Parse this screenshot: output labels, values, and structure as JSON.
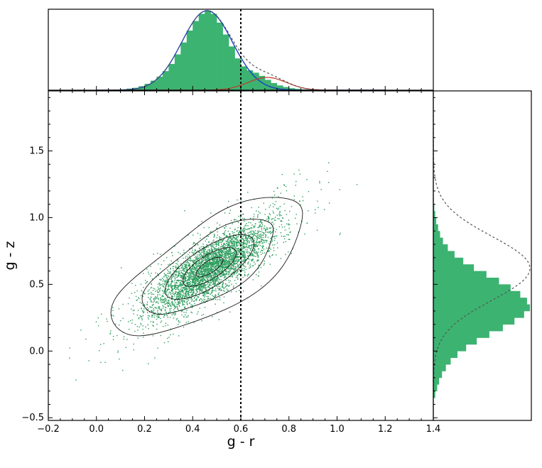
{
  "chart_data": {
    "type": "scatter",
    "xlabel": "g - r",
    "ylabel": "g - z",
    "xlim": [
      -0.2,
      1.4
    ],
    "ylim": [
      -0.52,
      1.95
    ],
    "x_ticks": [
      "−0.2",
      "0.0",
      "0.2",
      "0.4",
      "0.6",
      "0.8",
      "1.0",
      "1.2",
      "1.4"
    ],
    "y_ticks": [
      "−0.5",
      "0.0",
      "0.5",
      "1.0",
      "1.5"
    ],
    "vline_x": 0.6,
    "scatter_color": "#2e9e5e",
    "hist_color": "#3cb371",
    "gauss_main_color": "#1f3fbf",
    "gauss_second_color": "#c0392b",
    "top_histogram": {
      "bin_width": 0.025,
      "x_start": 0.1,
      "heights": [
        0.01,
        0.02,
        0.03,
        0.05,
        0.08,
        0.12,
        0.17,
        0.24,
        0.33,
        0.45,
        0.6,
        0.75,
        0.87,
        0.96,
        1.0,
        0.96,
        0.85,
        0.7,
        0.55,
        0.4,
        0.3,
        0.25,
        0.22,
        0.18,
        0.13,
        0.09,
        0.06,
        0.04,
        0.025,
        0.015,
        0.01,
        0.005
      ],
      "gauss_main": {
        "mu": 0.46,
        "sigma": 0.105,
        "amp": 1.0
      },
      "gauss_second": {
        "mu": 0.71,
        "sigma": 0.08,
        "amp": 0.16
      }
    },
    "right_histogram": {
      "bin_width": 0.05,
      "y_start": -0.35,
      "heights": [
        0.02,
        0.04,
        0.06,
        0.09,
        0.13,
        0.18,
        0.25,
        0.34,
        0.45,
        0.58,
        0.72,
        0.84,
        0.94,
        1.0,
        0.97,
        0.9,
        0.8,
        0.68,
        0.55,
        0.42,
        0.31,
        0.22,
        0.15,
        0.1,
        0.07,
        0.05,
        0.03,
        0.02,
        0.01,
        0.005
      ],
      "gauss": {
        "mu": 0.62,
        "sigma": 0.24,
        "amp": 1.0
      }
    },
    "density": {
      "center": [
        0.47,
        0.63
      ],
      "spread_along": 0.19,
      "spread_across": 0.06,
      "slope": 1.45
    }
  }
}
